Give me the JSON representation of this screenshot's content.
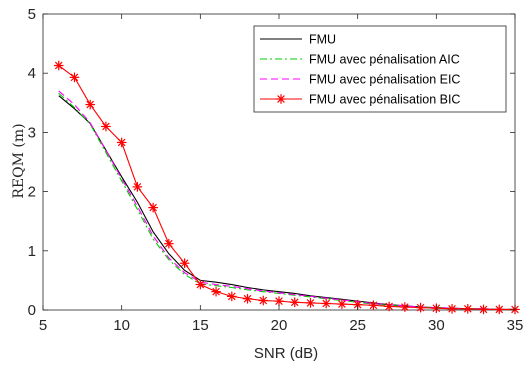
{
  "chart_data": {
    "type": "line",
    "xlabel": "SNR (dB)",
    "ylabel": "REQM (m)",
    "xlim": [
      5,
      35
    ],
    "ylim": [
      0,
      5
    ],
    "xticks": [
      "5",
      "10",
      "15",
      "20",
      "25",
      "30",
      "35"
    ],
    "yticks": [
      "0",
      "1",
      "2",
      "3",
      "4",
      "5"
    ],
    "grid": false,
    "legend_position": "top-right",
    "x": [
      6,
      7,
      8,
      9,
      10,
      11,
      12,
      13,
      14,
      15,
      16,
      17,
      18,
      19,
      20,
      21,
      22,
      23,
      24,
      25,
      26,
      27,
      28,
      29,
      30,
      31,
      32,
      33,
      34,
      35
    ],
    "series": [
      {
        "name": "FMU",
        "color": "#000000",
        "style": "solid",
        "marker": "none",
        "values": [
          3.62,
          3.4,
          3.15,
          2.7,
          2.25,
          1.82,
          1.32,
          0.95,
          0.67,
          0.5,
          0.47,
          0.43,
          0.38,
          0.34,
          0.31,
          0.28,
          0.24,
          0.21,
          0.18,
          0.15,
          0.12,
          0.09,
          0.07,
          0.05,
          0.04,
          0.03,
          0.02,
          0.02,
          0.01,
          0.01
        ]
      },
      {
        "name": "FMU avec pénalisation AIC",
        "color": "#00cc00",
        "style": "dashdot",
        "marker": "none",
        "values": [
          3.66,
          3.42,
          3.14,
          2.66,
          2.18,
          1.7,
          1.2,
          0.85,
          0.6,
          0.44,
          0.41,
          0.38,
          0.34,
          0.31,
          0.28,
          0.25,
          0.22,
          0.19,
          0.16,
          0.13,
          0.1,
          0.08,
          0.06,
          0.05,
          0.04,
          0.03,
          0.02,
          0.02,
          0.01,
          0.01
        ]
      },
      {
        "name": "FMU avec pénalisation EIC",
        "color": "#ff00ff",
        "style": "dashed",
        "marker": "none",
        "values": [
          3.7,
          3.47,
          3.16,
          2.7,
          2.22,
          1.75,
          1.25,
          0.88,
          0.63,
          0.47,
          0.43,
          0.4,
          0.36,
          0.32,
          0.29,
          0.26,
          0.23,
          0.2,
          0.17,
          0.14,
          0.11,
          0.09,
          0.07,
          0.05,
          0.04,
          0.03,
          0.02,
          0.02,
          0.01,
          0.01
        ]
      },
      {
        "name": "FMU avec pénalisation BIC",
        "color": "#ff0000",
        "style": "solid",
        "marker": "asterisk",
        "values": [
          4.13,
          3.93,
          3.47,
          3.1,
          2.83,
          2.08,
          1.73,
          1.12,
          0.79,
          0.43,
          0.31,
          0.23,
          0.19,
          0.16,
          0.15,
          0.13,
          0.12,
          0.11,
          0.1,
          0.09,
          0.08,
          0.06,
          0.05,
          0.04,
          0.03,
          0.02,
          0.02,
          0.01,
          0.01,
          0.01
        ]
      }
    ]
  }
}
